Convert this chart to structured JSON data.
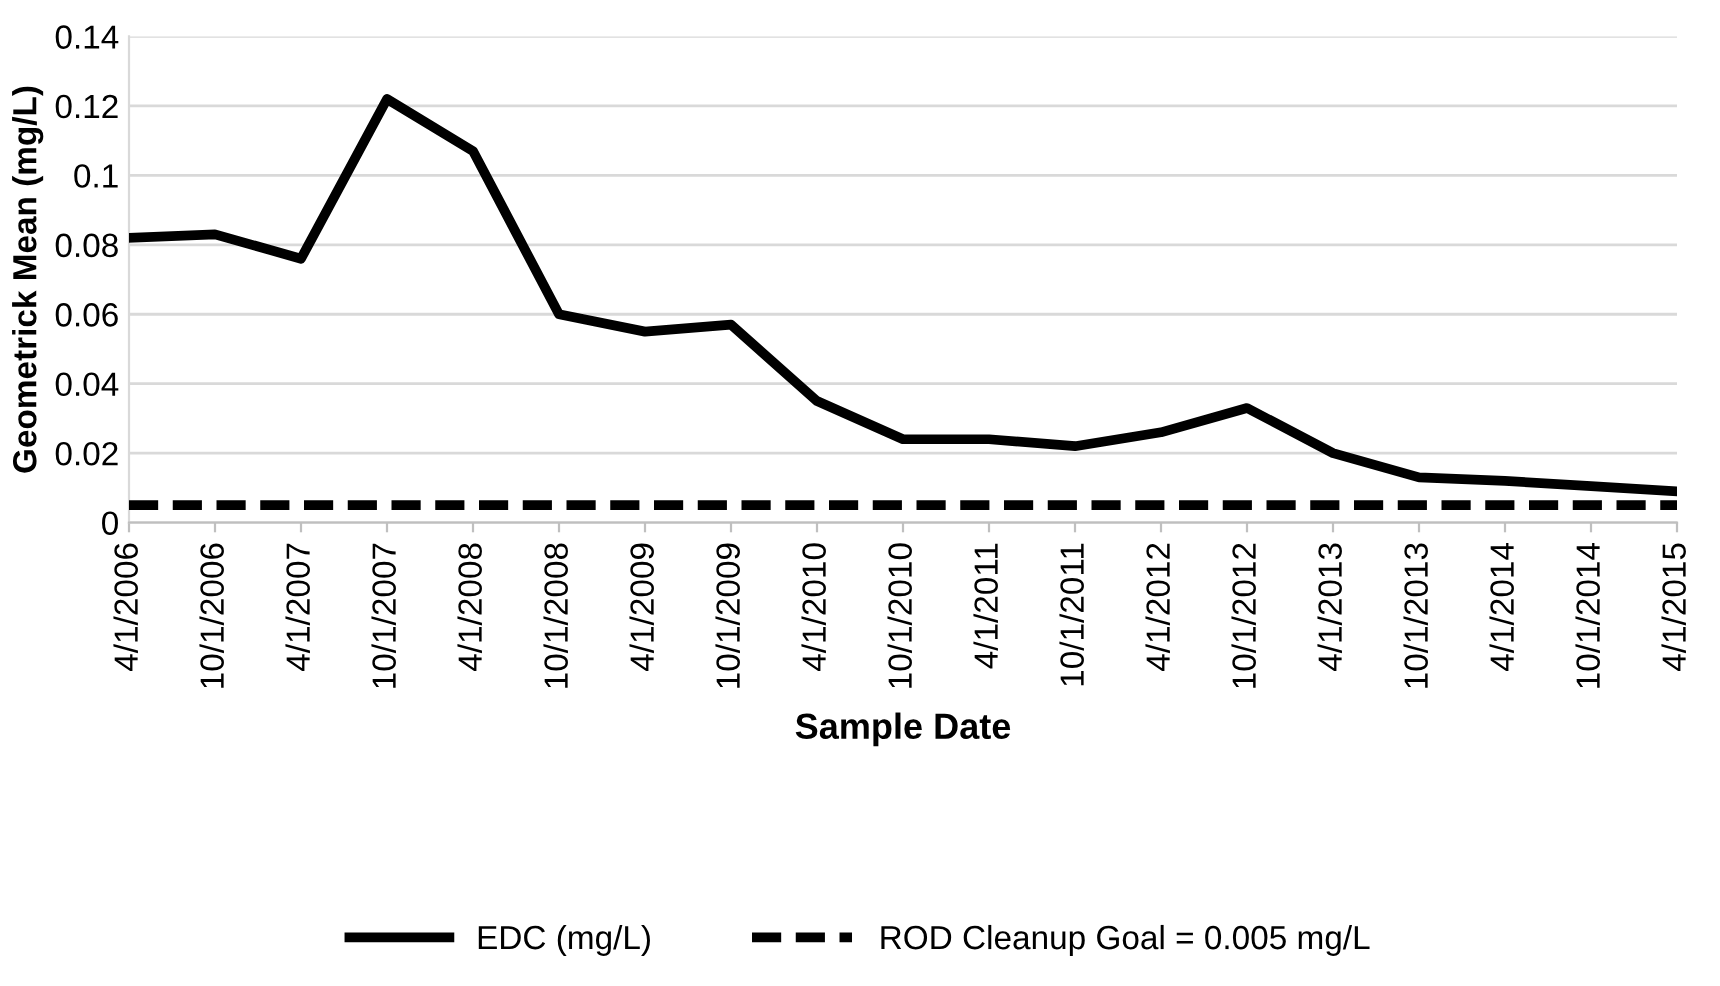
{
  "chart_data": {
    "type": "line",
    "xlabel": "Sample Date",
    "ylabel": "Geometrick Mean (mg/L)",
    "categories": [
      "4/1/2006",
      "10/1/2006",
      "4/1/2007",
      "10/1/2007",
      "4/1/2008",
      "10/1/2008",
      "4/1/2009",
      "10/1/2009",
      "4/1/2010",
      "10/1/2010",
      "4/1/2011",
      "10/1/2011",
      "4/1/2012",
      "10/1/2012",
      "4/1/2013",
      "10/1/2013",
      "4/1/2014",
      "10/1/2014",
      "4/1/2015"
    ],
    "series": [
      {
        "name": "EDC (mg/L)",
        "color": "#000000",
        "line_style": "solid",
        "values": [
          0.082,
          0.083,
          0.076,
          0.122,
          0.107,
          0.06,
          0.055,
          0.057,
          0.035,
          0.024,
          0.024,
          0.022,
          0.026,
          0.033,
          0.02,
          0.013,
          0.012,
          0.0105,
          0.009
        ]
      },
      {
        "name": "ROD Cleanup Goal = 0.005 mg/L",
        "color": "#000000",
        "line_style": "dashed",
        "values": [
          0.005,
          0.005,
          0.005,
          0.005,
          0.005,
          0.005,
          0.005,
          0.005,
          0.005,
          0.005,
          0.005,
          0.005,
          0.005,
          0.005,
          0.005,
          0.005,
          0.005,
          0.005,
          0.005
        ]
      }
    ],
    "ylim": [
      0,
      0.14
    ],
    "yticks": [
      0,
      {
        "value": 0.02,
        "label": "0.02"
      },
      {
        "value": 0.04,
        "label": "0.04"
      },
      {
        "value": 0.06,
        "label": "0.06"
      },
      {
        "value": 0.08,
        "label": "0.08"
      },
      {
        "value": 0.1,
        "label": "0.1"
      },
      {
        "value": 0.12,
        "label": "0.12"
      },
      {
        "value": 0.14,
        "label": "0.14"
      }
    ],
    "grid": "y",
    "legend": "bottom",
    "marker": "none"
  }
}
